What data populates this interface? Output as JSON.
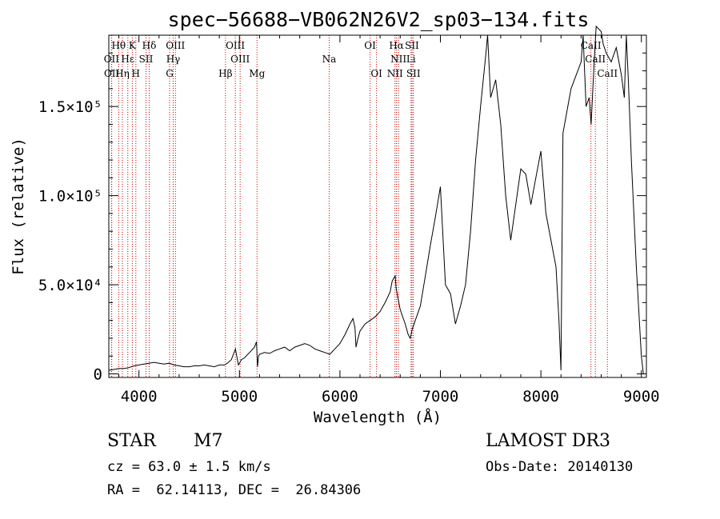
{
  "chart_data": {
    "type": "line",
    "title": "spec−56688−VB062N26V2_sp03−134.fits",
    "xlabel": "Wavelength (Å)",
    "ylabel": "Flux (relative)",
    "xlim": [
      3700,
      9050
    ],
    "ylim": [
      -2000,
      190000
    ],
    "x_ticks": [
      {
        "value": 4000,
        "label": "4000"
      },
      {
        "value": 5000,
        "label": "5000"
      },
      {
        "value": 6000,
        "label": "6000"
      },
      {
        "value": 7000,
        "label": "7000"
      },
      {
        "value": 8000,
        "label": "8000"
      },
      {
        "value": 9000,
        "label": "9000"
      }
    ],
    "y_ticks": [
      {
        "value": 0,
        "label": "0"
      },
      {
        "value": 50000,
        "label": "5.0×10⁴"
      },
      {
        "value": 100000,
        "label": "1.0×10⁵"
      },
      {
        "value": 150000,
        "label": "1.5×10⁵"
      }
    ],
    "series": [
      {
        "color": "#000000",
        "x": [
          3700,
          3750,
          3800,
          3850,
          3900,
          3950,
          4000,
          4050,
          4100,
          4150,
          4200,
          4250,
          4300,
          4350,
          4400,
          4450,
          4500,
          4550,
          4600,
          4650,
          4700,
          4750,
          4800,
          4850,
          4880,
          4920,
          4960,
          4990,
          5000,
          5020,
          5050,
          5100,
          5150,
          5170,
          5180,
          5190,
          5200,
          5250,
          5300,
          5350,
          5400,
          5450,
          5500,
          5550,
          5600,
          5650,
          5700,
          5750,
          5800,
          5850,
          5900,
          5950,
          6000,
          6050,
          6100,
          6130,
          6150,
          6160,
          6180,
          6200,
          6250,
          6300,
          6350,
          6400,
          6450,
          6500,
          6520,
          6550,
          6560,
          6580,
          6600,
          6650,
          6680,
          6700,
          6720,
          6750,
          6800,
          6850,
          6900,
          6950,
          7000,
          7050,
          7100,
          7150,
          7200,
          7250,
          7300,
          7350,
          7400,
          7450,
          7470,
          7500,
          7550,
          7600,
          7650,
          7700,
          7750,
          7800,
          7850,
          7900,
          7950,
          8000,
          8050,
          8100,
          8150,
          8180,
          8200,
          8220,
          8300,
          8400,
          8420,
          8450,
          8480,
          8500,
          8530,
          8550,
          8600,
          8620,
          8650,
          8700,
          8750,
          8800,
          8830,
          8850,
          8870,
          8900,
          8950,
          9000,
          9020
        ],
        "y": [
          2000,
          2500,
          3000,
          3000,
          3500,
          4500,
          5000,
          5500,
          6000,
          6500,
          6000,
          5500,
          6000,
          5000,
          4500,
          4000,
          4000,
          4500,
          4500,
          5000,
          4500,
          4000,
          5000,
          5000,
          6000,
          8000,
          14000,
          5000,
          6000,
          8000,
          9000,
          12000,
          15000,
          18000,
          4000,
          10000,
          11000,
          12000,
          11500,
          13000,
          14000,
          15000,
          13000,
          15000,
          16000,
          17000,
          16000,
          14000,
          13000,
          12000,
          11000,
          14000,
          17000,
          22000,
          28000,
          31000,
          26000,
          15000,
          20000,
          24000,
          28000,
          30000,
          32000,
          35000,
          40000,
          46000,
          52000,
          55000,
          48000,
          42000,
          36000,
          28000,
          22000,
          20000,
          25000,
          30000,
          38000,
          55000,
          72000,
          88000,
          105000,
          50000,
          45000,
          28000,
          38000,
          50000,
          80000,
          120000,
          150000,
          178000,
          190000,
          155000,
          165000,
          140000,
          100000,
          75000,
          95000,
          115000,
          112000,
          95000,
          110000,
          125000,
          90000,
          75000,
          60000,
          30000,
          2000,
          135000,
          160000,
          175000,
          190000,
          150000,
          155000,
          140000,
          175000,
          195000,
          192000,
          185000,
          180000,
          175000,
          183000,
          168000,
          155000,
          190000,
          165000,
          120000,
          60000,
          10000,
          0
        ]
      }
    ],
    "spectral_lines": [
      {
        "label": "Hθ",
        "x": 3798,
        "row": 0
      },
      {
        "label": "K",
        "x": 3934,
        "row": 0
      },
      {
        "label": "Hδ",
        "x": 4102,
        "row": 0
      },
      {
        "label": "OIII",
        "x": 4363,
        "row": 0
      },
      {
        "label": "OIII",
        "x": 4959,
        "row": 0
      },
      {
        "label": "OI",
        "x": 6300,
        "row": 0
      },
      {
        "label": "Hα",
        "x": 6563,
        "row": 0
      },
      {
        "label": "SII",
        "x": 6717,
        "row": 0
      },
      {
        "label": "CaII",
        "x": 8498,
        "row": 0
      },
      {
        "label": "OII",
        "x": 3727,
        "row": 1
      },
      {
        "label": "Hε",
        "x": 3889,
        "row": 1
      },
      {
        "label": "SII",
        "x": 4070,
        "row": 1
      },
      {
        "label": "Hγ",
        "x": 4341,
        "row": 1
      },
      {
        "label": "OIII",
        "x": 5007,
        "row": 1
      },
      {
        "label": "Na",
        "x": 5893,
        "row": 1
      },
      {
        "label": "NII",
        "x": 6583,
        "row": 1
      },
      {
        "label": "Li",
        "x": 6708,
        "row": 1
      },
      {
        "label": "CaII",
        "x": 8542,
        "row": 1
      },
      {
        "label": "OII",
        "x": 3729,
        "row": 2
      },
      {
        "label": "Hη",
        "x": 3835,
        "row": 2
      },
      {
        "label": "H",
        "x": 3969,
        "row": 2
      },
      {
        "label": "G",
        "x": 4305,
        "row": 2
      },
      {
        "label": "Hβ",
        "x": 4861,
        "row": 2
      },
      {
        "label": "Mg",
        "x": 5175,
        "row": 2
      },
      {
        "label": "OI",
        "x": 6364,
        "row": 2
      },
      {
        "label": "NII",
        "x": 6548,
        "row": 2
      },
      {
        "label": "SII",
        "x": 6731,
        "row": 2
      },
      {
        "label": "CaII",
        "x": 8662,
        "row": 2
      }
    ],
    "line_marker_color": "#cc0000"
  },
  "info": {
    "object_class": "STAR",
    "subclass": "M7",
    "survey": "LAMOST DR3",
    "redshift": "cz = 63.0 ± 1.5 km/s",
    "obs_date": "Obs-Date: 20140130",
    "coords": "RA =  62.14113, DEC =  26.84306"
  }
}
